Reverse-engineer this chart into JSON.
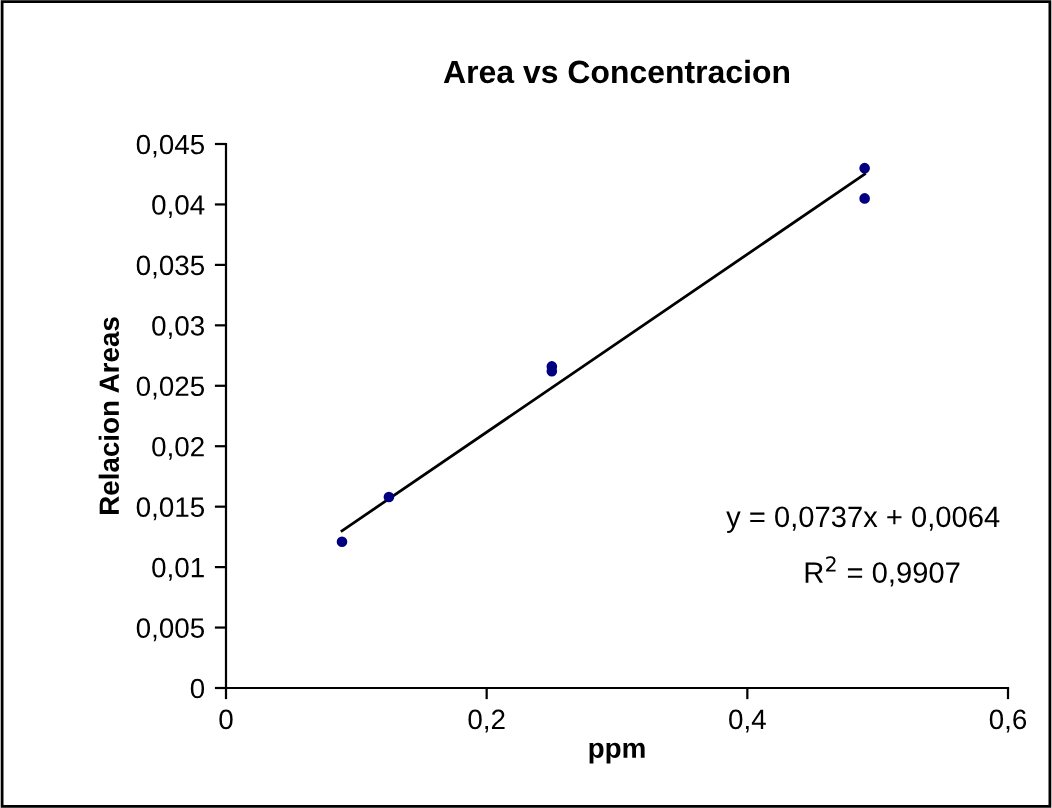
{
  "chart_data": {
    "type": "scatter",
    "title": "Area vs Concentracion",
    "xlabel": "ppm",
    "ylabel": "Relacion Areas",
    "series": [
      {
        "color": "#000080",
        "marker": "circle",
        "x": [
          0.089,
          0.125,
          0.25,
          0.25,
          0.49,
          0.49
        ],
        "values": [
          0.0121,
          0.0158,
          0.0262,
          0.0266,
          0.043,
          0.0405
        ]
      },
      {
        "type": "line",
        "color": "#000000",
        "marker": "none",
        "line_style": "solid",
        "x": [
          0.089,
          0.49
        ],
        "values": [
          0.013,
          0.0425
        ]
      }
    ],
    "annotations": [
      "y = 0,0737x + 0,0064",
      "R$^{2}$ = 0,9907"
    ],
    "xlim": [
      0,
      0.6
    ],
    "xticks": [
      0,
      {
        "value": 0.2,
        "label": "0,2"
      },
      {
        "value": 0.4,
        "label": "0,4"
      },
      {
        "value": 0.6,
        "label": "0,6"
      }
    ],
    "ylim": [
      0,
      0.045
    ],
    "yticks": [
      0,
      {
        "value": 0.005,
        "label": "0,005"
      },
      {
        "value": 0.01,
        "label": "0,01"
      },
      {
        "value": 0.015,
        "label": "0,015"
      },
      {
        "value": 0.02,
        "label": "0,02"
      },
      {
        "value": 0.025,
        "label": "0,025"
      },
      {
        "value": 0.03,
        "label": "0,03"
      },
      {
        "value": 0.035,
        "label": "0,035"
      },
      {
        "value": 0.04,
        "label": "0,04"
      },
      {
        "value": 0.045,
        "label": "0,045"
      }
    ],
    "grid": false,
    "legend": false
  }
}
